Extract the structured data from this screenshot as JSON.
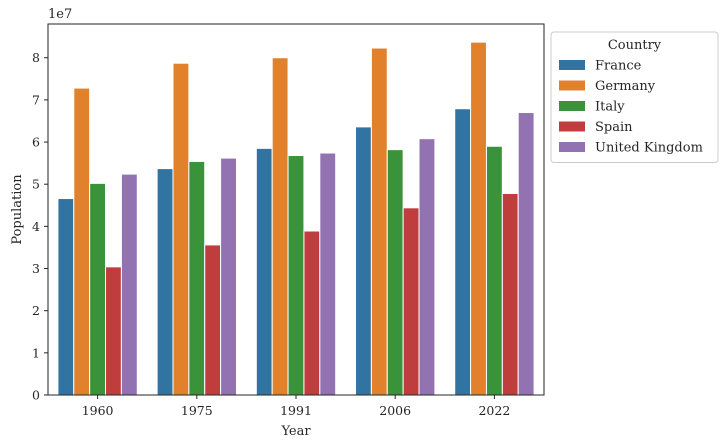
{
  "chart_data": {
    "type": "bar",
    "xlabel": "Year",
    "ylabel": "Population",
    "y_offset_label": "1e7",
    "ylim": [
      0,
      88000000
    ],
    "yticks": [
      0,
      10000000,
      20000000,
      30000000,
      40000000,
      50000000,
      60000000,
      70000000,
      80000000
    ],
    "ytick_labels": [
      "0",
      "1",
      "2",
      "3",
      "4",
      "5",
      "6",
      "7",
      "8"
    ],
    "categories": [
      "1960",
      "1975",
      "1991",
      "2006",
      "2022"
    ],
    "legend": {
      "title": "Country",
      "placement": "outside-top-right"
    },
    "grid": false,
    "series": [
      {
        "name": "France",
        "color": "#3274a1",
        "values": [
          46600000,
          53700000,
          58500000,
          63600000,
          67900000
        ]
      },
      {
        "name": "Germany",
        "color": "#e1812c",
        "values": [
          72800000,
          78700000,
          80000000,
          82300000,
          83700000
        ]
      },
      {
        "name": "Italy",
        "color": "#3a923a",
        "values": [
          50200000,
          55400000,
          56800000,
          58200000,
          59000000
        ]
      },
      {
        "name": "Spain",
        "color": "#c03d3e",
        "values": [
          30400000,
          35600000,
          38900000,
          44400000,
          47800000
        ]
      },
      {
        "name": "United Kingdom",
        "color": "#9372b2",
        "values": [
          52400000,
          56200000,
          57400000,
          60800000,
          67000000
        ]
      }
    ]
  }
}
